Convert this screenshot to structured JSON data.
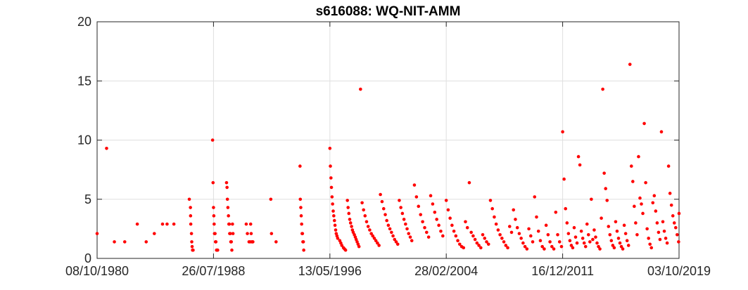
{
  "chart_data": {
    "type": "scatter",
    "title": "s616088: WQ-NIT-AMM",
    "xlabel": "",
    "ylabel": "",
    "x_axis_type": "date",
    "xlim": [
      "1980-10-08",
      "2019-10-03"
    ],
    "ylim": [
      0,
      20
    ],
    "x_tick_labels": [
      "08/10/1980",
      "26/07/1988",
      "13/05/1996",
      "28/02/2004",
      "16/12/2011",
      "03/10/2019"
    ],
    "x_tick_values": [
      "1980-10-08",
      "1988-07-26",
      "1996-05-13",
      "2004-02-28",
      "2011-12-16",
      "2019-10-03"
    ],
    "y_ticks": [
      0,
      5,
      10,
      15,
      20
    ],
    "grid": true,
    "legend": "none",
    "marker_color": "#ff0000",
    "series": [
      {
        "x": [
          "1980-10-08",
          "1981-05-28",
          "1981-12-05",
          "1982-08-15",
          "1983-06-18",
          "1984-01-22",
          "1984-08-08",
          "1985-02-25",
          "1985-06-16",
          "1985-11-30",
          "1986-12-12",
          "1987-01-09",
          "1987-01-12",
          "1987-01-17",
          "1987-02-03",
          "1987-02-10",
          "1987-02-19",
          "1987-03-01",
          "1987-03-08",
          "1987-03-15",
          "1988-07-04",
          "1988-07-15",
          "1988-07-26",
          "1988-08-03",
          "1988-08-11",
          "1988-08-19",
          "1988-09-02",
          "1988-09-13",
          "1988-09-23",
          "1988-10-08",
          "1988-10-22",
          "1988-11-05",
          "1989-06-10",
          "1989-06-22",
          "1989-07-01",
          "1989-07-13",
          "1989-07-27",
          "1989-08-06",
          "1989-08-16",
          "1989-08-26",
          "1989-09-10",
          "1989-09-22",
          "1989-10-05",
          "1989-10-18",
          "1989-11-02",
          "1989-11-15",
          "1990-10-05",
          "1990-11-02",
          "1990-12-12",
          "1991-01-09",
          "1991-01-21",
          "1991-02-03",
          "1991-02-18",
          "1991-03-05",
          "1991-03-17",
          "1992-05-28",
          "1992-06-14",
          "1992-10-04",
          "1994-05-13",
          "1994-05-20",
          "1994-06-01",
          "1994-06-11",
          "1994-06-22",
          "1994-07-03",
          "1994-07-12",
          "1994-07-22",
          "1994-08-03",
          "1994-08-12"
        ],
        "y": [
          2.1,
          9.3,
          1.4,
          1.4,
          2.9,
          1.4,
          2.1,
          2.9,
          2.9,
          2.9,
          5.0,
          4.3,
          3.6,
          2.9,
          2.1,
          1.4,
          1.0,
          0.7,
          0.7,
          0.7,
          10.0,
          6.4,
          4.3,
          3.6,
          2.9,
          2.1,
          2.1,
          1.4,
          1.4,
          0.7,
          0.7,
          0.7,
          6.4,
          6.0,
          5.0,
          4.3,
          3.6,
          2.9,
          2.9,
          2.1,
          2.1,
          1.4,
          1.4,
          0.7,
          2.9,
          2.1,
          2.9,
          2.1,
          1.4,
          1.4,
          2.9,
          2.1,
          1.4,
          1.4,
          1.4,
          5.0,
          2.1,
          1.4,
          7.8,
          5.0,
          4.3,
          3.6,
          2.9,
          2.1,
          2.1,
          1.4,
          1.4,
          0.7
        ]
      },
      {
        "x": [
          "1996-05-13",
          "1996-05-25",
          "1996-06-08",
          "1996-06-20",
          "1996-07-04",
          "1996-07-18",
          "1996-08-02",
          "1996-08-16",
          "1996-09-01",
          "1996-09-15",
          "1996-10-01",
          "1996-10-15",
          "1996-11-02",
          "1996-11-20",
          "1997-01-10",
          "1997-02-05",
          "1997-03-01",
          "1997-04-10",
          "1997-05-05",
          "1997-06-01",
          "1997-07-15",
          "1997-08-01",
          "1997-08-20",
          "1997-09-10",
          "1997-10-01",
          "1997-10-25",
          "1997-11-15",
          "1997-12-05",
          "1998-01-01",
          "1998-01-25",
          "1998-02-15",
          "1998-03-10",
          "1998-04-02",
          "1998-04-25",
          "1998-06-01",
          "1998-07-10",
          "1998-08-15",
          "1998-09-20",
          "1998-10-28",
          "1998-12-05",
          "1999-01-12",
          "1999-02-20",
          "1999-03-28",
          "1999-05-05",
          "1999-06-12",
          "1999-07-20",
          "1999-08-28",
          "1999-10-01",
          "1999-11-10",
          "1999-12-20",
          "2000-01-28",
          "2000-03-05",
          "2000-04-12",
          "2000-05-20",
          "2000-06-28",
          "2000-08-05",
          "2000-09-12",
          "2000-10-20",
          "2000-11-28",
          "2001-01-05",
          "2001-02-12",
          "2001-03-22",
          "2001-04-30",
          "2001-06-07",
          "2001-07-15",
          "2001-08-22",
          "2001-09-30",
          "2001-11-07",
          "2002-01-10",
          "2002-03-01",
          "2002-04-20",
          "2002-06-10",
          "2002-07-30",
          "2002-09-18",
          "2002-11-05",
          "2002-12-24",
          "2003-02-12",
          "2003-04-02",
          "2003-05-22",
          "2003-07-10",
          "2003-08-30",
          "2003-10-18",
          "2003-12-06"
        ],
        "y": [
          9.3,
          7.8,
          6.8,
          6.0,
          5.2,
          4.6,
          4.0,
          3.6,
          3.2,
          2.8,
          2.4,
          2.1,
          1.9,
          1.7,
          1.5,
          1.3,
          1.1,
          0.9,
          0.8,
          0.7,
          4.9,
          4.3,
          3.8,
          3.3,
          3.0,
          2.7,
          2.4,
          2.2,
          2.0,
          1.8,
          1.6,
          1.4,
          1.2,
          1.0,
          14.3,
          4.7,
          4.1,
          3.6,
          3.1,
          2.7,
          2.4,
          2.1,
          1.9,
          1.7,
          1.5,
          1.3,
          1.1,
          5.4,
          4.8,
          4.2,
          3.7,
          3.2,
          2.8,
          2.5,
          2.2,
          1.9,
          1.6,
          1.4,
          1.2,
          4.9,
          4.3,
          3.8,
          3.3,
          2.9,
          2.5,
          2.1,
          1.8,
          1.5,
          6.2,
          5.2,
          4.4,
          3.7,
          3.1,
          2.6,
          2.2,
          1.8,
          5.3,
          4.6,
          3.9,
          3.3,
          2.8,
          2.3,
          1.9
        ]
      },
      {
        "x": [
          "2004-02-28",
          "2004-04-15",
          "2004-06-01",
          "2004-07-18",
          "2004-09-03",
          "2004-10-20",
          "2004-12-06",
          "2005-01-22",
          "2005-03-10",
          "2005-04-26",
          "2005-06-12",
          "2005-07-29",
          "2005-09-14",
          "2005-10-31",
          "2005-12-17",
          "2006-02-02",
          "2006-03-21",
          "2006-05-07",
          "2006-06-23",
          "2006-08-09",
          "2006-09-25",
          "2006-11-11",
          "2006-12-28",
          "2007-02-13",
          "2007-04-01",
          "2007-05-18",
          "2007-07-04",
          "2007-08-20",
          "2007-10-06",
          "2007-11-22",
          "2008-01-08",
          "2008-02-24",
          "2008-04-11",
          "2008-05-28",
          "2008-07-14",
          "2008-08-30",
          "2008-10-16",
          "2008-12-02",
          "2009-01-18",
          "2009-03-06",
          "2009-04-22",
          "2009-06-08",
          "2009-07-25",
          "2009-09-10",
          "2009-10-27",
          "2009-12-13",
          "2010-01-29",
          "2010-03-17",
          "2010-05-03",
          "2010-06-19",
          "2010-08-05",
          "2010-09-21",
          "2010-11-07",
          "2010-12-24",
          "2011-02-09",
          "2011-03-28",
          "2011-05-14",
          "2011-06-30",
          "2011-08-16",
          "2011-10-02",
          "2011-11-18"
        ],
        "y": [
          4.9,
          4.1,
          3.4,
          2.8,
          2.3,
          1.9,
          1.5,
          1.2,
          1.0,
          0.9,
          3.1,
          2.6,
          6.4,
          2.2,
          1.9,
          1.6,
          1.3,
          1.1,
          0.9,
          2.0,
          1.7,
          1.4,
          1.2,
          4.9,
          4.2,
          3.5,
          2.9,
          2.4,
          2.0,
          1.7,
          1.4,
          1.1,
          0.9,
          2.7,
          2.2,
          4.1,
          3.3,
          2.6,
          2.1,
          1.7,
          1.3,
          1.0,
          0.8,
          2.5,
          1.9,
          1.4,
          5.2,
          3.5,
          2.3,
          1.5,
          1.0,
          0.8,
          2.8,
          2.0,
          1.4,
          1.0,
          0.8,
          3.9,
          2.0,
          1.4,
          1.0
        ]
      },
      {
        "x": [
          "2011-12-16",
          "2012-01-20",
          "2012-02-25",
          "2012-04-01",
          "2012-05-06",
          "2012-06-10",
          "2012-07-15",
          "2012-08-19",
          "2012-09-23",
          "2012-10-28",
          "2012-12-02",
          "2013-01-06",
          "2013-02-10",
          "2013-03-17",
          "2013-04-21",
          "2013-05-26",
          "2013-06-30",
          "2013-08-04",
          "2013-09-08",
          "2013-10-13",
          "2013-11-17",
          "2013-12-22",
          "2014-01-26",
          "2014-03-02",
          "2014-04-06",
          "2014-05-11",
          "2014-06-15",
          "2014-07-20",
          "2014-08-24",
          "2014-09-28",
          "2014-11-02",
          "2014-12-07",
          "2015-01-11",
          "2015-02-15",
          "2015-03-22",
          "2015-04-26",
          "2015-05-31",
          "2015-07-05",
          "2015-08-09",
          "2015-09-13",
          "2015-10-18",
          "2015-11-22",
          "2015-12-27",
          "2016-01-31",
          "2016-03-06",
          "2016-04-10",
          "2016-05-15",
          "2016-06-19",
          "2016-07-24",
          "2016-08-28",
          "2016-10-02",
          "2016-11-06",
          "2016-12-11",
          "2017-01-15",
          "2017-02-19",
          "2017-03-26",
          "2017-04-30",
          "2017-06-04",
          "2017-07-09",
          "2017-08-13",
          "2017-09-17",
          "2017-10-22",
          "2017-11-26",
          "2017-12-31",
          "2018-02-04",
          "2018-03-11",
          "2018-04-15",
          "2018-05-20",
          "2018-06-24",
          "2018-07-29",
          "2018-09-02",
          "2018-10-07",
          "2018-11-11",
          "2018-12-16",
          "2019-01-20",
          "2019-02-24",
          "2019-03-31",
          "2019-05-05",
          "2019-06-09",
          "2019-07-14",
          "2019-08-18",
          "2019-09-22",
          "2019-10-03"
        ],
        "y": [
          10.7,
          6.7,
          4.2,
          3.0,
          2.1,
          1.5,
          1.1,
          0.9,
          2.6,
          1.8,
          1.3,
          8.6,
          7.9,
          2.3,
          1.7,
          1.3,
          1.0,
          2.9,
          2.0,
          1.4,
          5.0,
          1.6,
          2.4,
          1.8,
          1.3,
          1.0,
          0.8,
          3.4,
          14.3,
          7.2,
          5.9,
          4.9,
          2.7,
          2.0,
          1.5,
          1.1,
          0.9,
          3.1,
          2.3,
          1.7,
          1.3,
          1.0,
          0.8,
          2.8,
          2.1,
          1.5,
          1.1,
          16.4,
          7.8,
          6.5,
          4.4,
          3.0,
          2.0,
          8.6,
          5.1,
          4.6,
          3.8,
          11.4,
          6.4,
          2.5,
          1.7,
          1.2,
          0.9,
          4.7,
          5.3,
          4.0,
          3.0,
          2.2,
          1.6,
          10.7,
          3.1,
          2.3,
          1.7,
          1.3,
          7.8,
          5.5,
          4.5,
          3.6,
          3.0,
          2.6,
          2.0,
          1.4,
          3.8
        ]
      }
    ]
  }
}
